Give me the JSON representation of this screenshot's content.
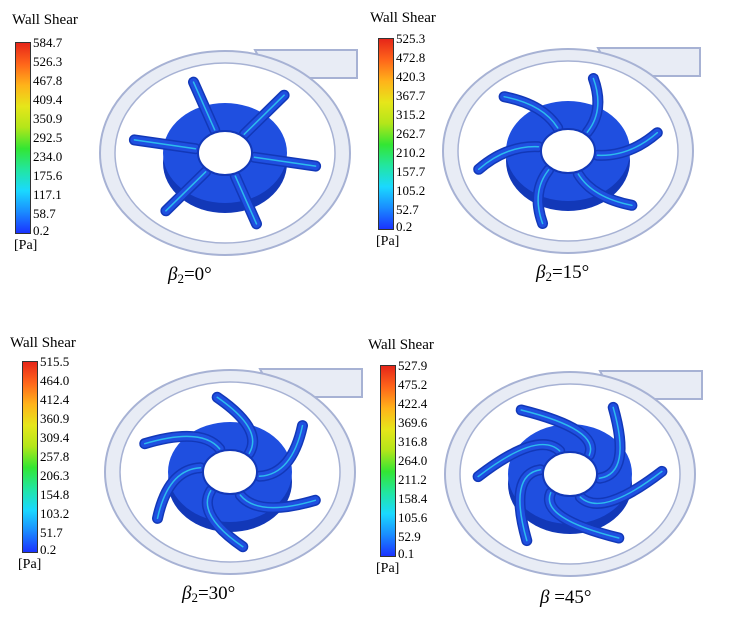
{
  "figure": {
    "legend_title": "Wall Shear",
    "unit": "[Pa]",
    "colors": {
      "scale": [
        "#1a33ff",
        "#1a8cff",
        "#1ad9ff",
        "#22e6a0",
        "#33e633",
        "#b3e61a",
        "#e6e61a",
        "#ffb31a",
        "#ff661a",
        "#e62619"
      ],
      "volute_fill": "#e8ecf5",
      "volute_stroke": "#a7b2d4",
      "impeller": "#1f4fe0",
      "impeller_dark": "#1238b8",
      "blade_edge": "#2fd6f0"
    },
    "panels": [
      {
        "legend_values": [
          "584.7",
          "526.3",
          "467.8",
          "409.4",
          "350.9",
          "292.5",
          "234.0",
          "175.6",
          "117.1",
          "58.7",
          "0.2"
        ],
        "caption_symbol": "β",
        "caption_sub": "2",
        "caption_rest": "=0°",
        "blade_angle_deg": 0
      },
      {
        "legend_values": [
          "525.3",
          "472.8",
          "420.3",
          "367.7",
          "315.2",
          "262.7",
          "210.2",
          "157.7",
          "105.2",
          "52.7",
          "0.2"
        ],
        "caption_symbol": "β",
        "caption_sub": "2",
        "caption_rest": "=15°",
        "blade_angle_deg": 15
      },
      {
        "legend_values": [
          "515.5",
          "464.0",
          "412.4",
          "360.9",
          "309.4",
          "257.8",
          "206.3",
          "154.8",
          "103.2",
          "51.7",
          "0.2"
        ],
        "caption_symbol": "β",
        "caption_sub": "2",
        "caption_rest": "=30°",
        "blade_angle_deg": 30
      },
      {
        "legend_values": [
          "527.9",
          "475.2",
          "422.4",
          "369.6",
          "316.8",
          "264.0",
          "211.2",
          "158.4",
          "105.6",
          "52.9",
          "0.1"
        ],
        "caption_symbol": "β",
        "caption_sub": "",
        "caption_rest": " =45°",
        "blade_angle_deg": 45
      }
    ]
  }
}
